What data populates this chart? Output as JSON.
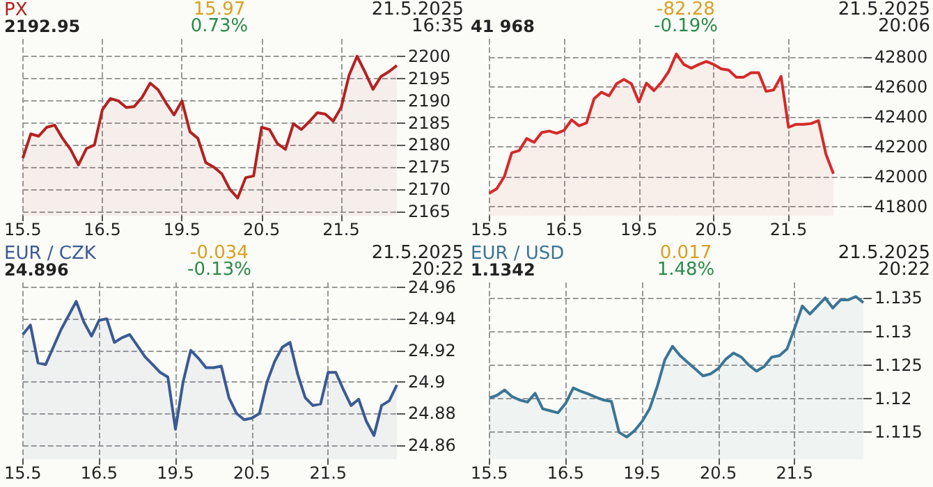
{
  "chart_data": [
    {
      "type": "area",
      "title": "PX",
      "subtitle": "2192.95",
      "annotations": [
        "15.97",
        "0.73%",
        "21.5.2025\n16:35"
      ],
      "grid": true,
      "categories": [
        "15.5",
        null,
        null,
        null,
        null,
        null,
        null,
        null,
        null,
        null,
        "16.5",
        null,
        null,
        null,
        null,
        null,
        null,
        null,
        null,
        null,
        "19.5",
        null,
        null,
        null,
        null,
        null,
        null,
        null,
        null,
        null,
        "20.5",
        null,
        null,
        null,
        null,
        null,
        null,
        null,
        null,
        null,
        "21.5",
        null,
        null,
        null,
        null,
        null,
        null,
        null
      ],
      "ylim": [
        2164,
        2204
      ],
      "yticks": [
        2165,
        2170,
        2175,
        2180,
        2185,
        2190,
        2195,
        2200
      ],
      "series": [
        {
          "color": "#b22222",
          "values": [
            2177,
            2182.5,
            2182,
            2184,
            2184.5,
            2181.5,
            2179,
            2175.5,
            2179.2,
            2180,
            2188,
            2190.5,
            2190,
            2188.5,
            2188.7,
            2190.8,
            2194,
            2192.5,
            2189.5,
            2186.8,
            2190,
            2183,
            2181.5,
            2176,
            2175,
            2173.5,
            2170,
            2168,
            2172.6,
            2173,
            2184,
            2183.5,
            2180.3,
            2179,
            2184.8,
            2183.5,
            2185.3,
            2187.3,
            2187,
            2185.4,
            2188.5,
            2195.8,
            2200.1,
            2196.5,
            2192.6,
            2195.5,
            2196.6,
            2198
          ]
        }
      ]
    },
    {
      "type": "area",
      "subtitle": "41 968",
      "annotations": [
        "-82.28",
        "-0.19%",
        "21.5.2025\n20:06"
      ],
      "grid": true,
      "categories": [
        "15.5",
        null,
        null,
        null,
        null,
        null,
        null,
        null,
        null,
        null,
        "16.5",
        null,
        null,
        null,
        null,
        null,
        null,
        null,
        null,
        null,
        "19.5",
        null,
        null,
        null,
        null,
        null,
        null,
        null,
        null,
        null,
        "20.5",
        null,
        null,
        null,
        null,
        null,
        null,
        null,
        null,
        null,
        "21.5",
        null,
        null,
        null,
        null,
        null,
        null,
        null,
        null,
        null,
        null
      ],
      "ylim": [
        41740,
        42920
      ],
      "yticks": [
        41800,
        42000,
        42200,
        42400,
        42600,
        42800
      ],
      "series": [
        {
          "color": "#d42a2a",
          "values": [
            41890,
            41920,
            42000,
            42160,
            42175,
            42255,
            42230,
            42295,
            42305,
            42290,
            42310,
            42380,
            42340,
            42360,
            42520,
            42565,
            42540,
            42620,
            42650,
            42620,
            42500,
            42625,
            42575,
            42630,
            42705,
            42820,
            42750,
            42725,
            42750,
            42770,
            42750,
            42720,
            42712,
            42665,
            42665,
            42695,
            42695,
            42570,
            42580,
            42670,
            42330,
            42350,
            42350,
            42355,
            42375,
            42150,
            42020,
            null,
            null,
            null,
            null
          ]
        }
      ]
    },
    {
      "type": "area",
      "title": "EUR / CZK",
      "subtitle": "24.896",
      "annotations": [
        "-0.034",
        "-0.13%",
        "21.5.2025\n20:22"
      ],
      "grid": true,
      "categories": [
        "15.5",
        null,
        null,
        null,
        null,
        null,
        null,
        null,
        null,
        null,
        "16.5",
        null,
        null,
        null,
        null,
        null,
        null,
        null,
        null,
        null,
        "19.5",
        null,
        null,
        null,
        null,
        null,
        null,
        null,
        null,
        null,
        "20.5",
        null,
        null,
        null,
        null,
        null,
        null,
        null,
        null,
        null,
        "21.5",
        null,
        null,
        null,
        null,
        null,
        null,
        null,
        null,
        null
      ],
      "ylim": [
        24.851,
        24.963
      ],
      "yticks": [
        24.86,
        24.88,
        24.9,
        24.92,
        24.94,
        24.96
      ],
      "series": [
        {
          "color": "#3b5a94",
          "values": [
            24.93,
            24.936,
            24.912,
            24.911,
            24.922,
            24.933,
            24.942,
            24.951,
            24.938,
            24.929,
            24.939,
            24.94,
            24.925,
            24.928,
            24.93,
            24.923,
            24.916,
            24.911,
            24.906,
            24.903,
            24.87,
            24.9,
            24.92,
            24.915,
            24.909,
            24.909,
            24.91,
            24.89,
            24.88,
            24.876,
            24.877,
            24.88,
            24.9,
            24.913,
            24.922,
            24.925,
            24.905,
            24.89,
            24.885,
            24.886,
            24.906,
            24.906,
            24.895,
            24.885,
            24.889,
            24.875,
            24.866,
            24.885,
            24.888,
            24.898
          ]
        }
      ]
    },
    {
      "type": "area",
      "title": "EUR / USD",
      "subtitle": "1.1342",
      "annotations": [
        "0.017",
        "1.48%",
        "21.5.2025\n20:22"
      ],
      "grid": true,
      "categories": [
        "15.5",
        null,
        null,
        null,
        null,
        null,
        null,
        null,
        null,
        null,
        "16.5",
        null,
        null,
        null,
        null,
        null,
        null,
        null,
        null,
        null,
        "19.5",
        null,
        null,
        null,
        null,
        null,
        null,
        null,
        null,
        null,
        "20.5",
        null,
        null,
        null,
        null,
        null,
        null,
        null,
        null,
        null,
        "21.5",
        null,
        null,
        null,
        null,
        null,
        null,
        null,
        null,
        null
      ],
      "ylim": [
        1.111,
        1.1373
      ],
      "yticks": [
        1.115,
        1.12,
        1.125,
        1.13,
        1.135
      ],
      "series": [
        {
          "color": "#3a7596",
          "values": [
            1.1201,
            1.1205,
            1.1213,
            1.1203,
            1.1198,
            1.1195,
            1.1208,
            1.1185,
            1.1182,
            1.1179,
            1.1193,
            1.1216,
            1.1211,
            1.1207,
            1.1202,
            1.1198,
            1.1196,
            1.115,
            1.1143,
            1.1152,
            1.1166,
            1.1185,
            1.1218,
            1.1258,
            1.1278,
            1.1264,
            1.1254,
            1.1244,
            1.1234,
            1.1237,
            1.1245,
            1.1259,
            1.1268,
            1.1262,
            1.125,
            1.1241,
            1.1248,
            1.1262,
            1.1264,
            1.1274,
            1.1305,
            1.1338,
            1.1326,
            1.1338,
            1.135,
            1.1335,
            1.1347,
            1.1347,
            1.1352,
            1.1343
          ]
        }
      ]
    }
  ]
}
